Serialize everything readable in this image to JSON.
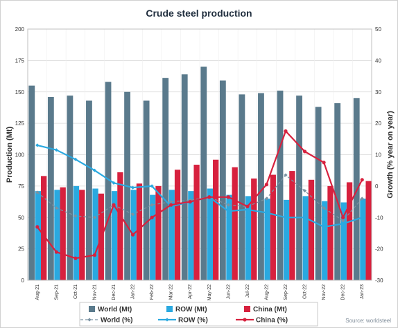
{
  "chart_data": {
    "type": "bar",
    "title": "Crude steel production",
    "ylabel": "Production (Mt)",
    "y2label": "Growth (% year on year)",
    "ylim": [
      0,
      200
    ],
    "y2lim": [
      -30,
      50
    ],
    "yticks": [
      0,
      25,
      50,
      75,
      100,
      125,
      150,
      175,
      200
    ],
    "y2ticks": [
      -30,
      -20,
      -10,
      0,
      10,
      20,
      30,
      40,
      50
    ],
    "categories": [
      "Aug-21",
      "Sep-21",
      "Oct-21",
      "Nov-21",
      "Dec-21",
      "Jan-22",
      "Feb-22",
      "Mar-22",
      "Apr-22",
      "May-22",
      "Jun-22",
      "Jul-22",
      "Aug-22",
      "Sep-22",
      "Oct-22",
      "Nov-22",
      "Dec-22",
      "Jan-23"
    ],
    "bar_series": [
      {
        "name": "World (Mt)",
        "color": "#5a7a8c",
        "values": [
          155,
          146,
          147,
          143,
          158,
          150,
          143,
          161,
          164,
          170,
          159,
          148,
          149,
          151,
          147,
          138,
          141,
          145
        ]
      },
      {
        "name": "ROW (Mt)",
        "color": "#2aa9e0",
        "values": [
          71,
          72,
          75,
          73,
          71,
          72,
          68,
          72,
          71,
          73,
          68,
          67,
          65,
          64,
          67,
          63,
          62,
          65
        ]
      },
      {
        "name": "China (Mt)",
        "color": "#d7213e",
        "values": [
          83,
          74,
          72,
          69,
          86,
          77,
          75,
          88,
          92,
          96,
          90,
          81,
          84,
          87,
          80,
          75,
          78,
          79
        ]
      }
    ],
    "line_series": [
      {
        "name": "World (%)",
        "axis": "right",
        "color": "#7b93a3",
        "values": [
          -2,
          -7,
          -9.5,
          -10,
          -6,
          -9,
          -6,
          -5,
          -4.5,
          -3.5,
          -6,
          -6.5,
          -4,
          3.5,
          -1.5,
          -7,
          -11,
          -4
        ]
      },
      {
        "name": "ROW (%)",
        "axis": "right",
        "color": "#2aa9e0",
        "values": [
          13,
          11.5,
          8.5,
          5,
          1,
          -0.5,
          0,
          -6.5,
          -5,
          -3.5,
          -8,
          -7.5,
          -8.5,
          -10,
          -10,
          -13,
          -12,
          -10
        ]
      },
      {
        "name": "China (%)",
        "axis": "right",
        "color": "#d7213e",
        "values": [
          -13,
          -21,
          -23,
          -22,
          -6,
          -15.5,
          -10,
          -6,
          -5,
          -3.5,
          -3.5,
          -6.5,
          0.5,
          17.5,
          11,
          7.5,
          -10,
          2
        ]
      }
    ],
    "source": "Source: worldsteel"
  }
}
